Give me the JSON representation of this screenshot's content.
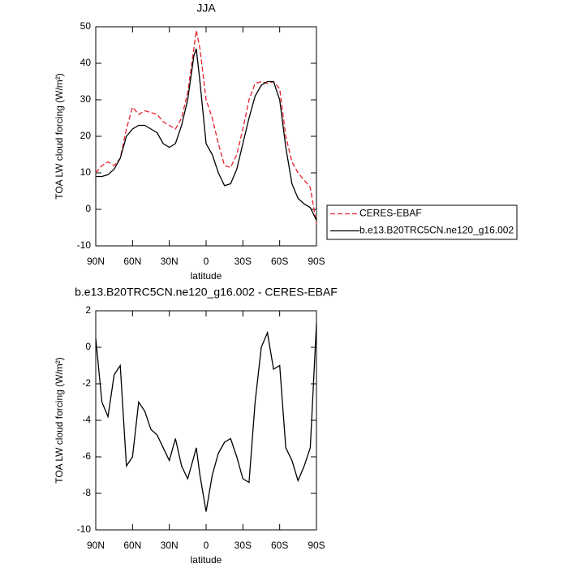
{
  "chart_data": [
    {
      "type": "line",
      "title": "JJA",
      "xlabel": "latitude",
      "ylabel": "TOA LW cloud forcing (W/m²)",
      "x": [
        90,
        85,
        80,
        75,
        70,
        65,
        60,
        55,
        50,
        45,
        40,
        35,
        30,
        25,
        20,
        15,
        10,
        8,
        5,
        0,
        -5,
        -10,
        -15,
        -20,
        -25,
        -30,
        -35,
        -40,
        -45,
        -50,
        -55,
        -60,
        -65,
        -70,
        -75,
        -80,
        -85,
        -90
      ],
      "series": [
        {
          "name": "CERES-EBAF",
          "color": "#e8202a",
          "dash": "dashed",
          "values": [
            10,
            12,
            13,
            12,
            14,
            22,
            28,
            26,
            27,
            26.5,
            26,
            24,
            23,
            22,
            25,
            32,
            44,
            49,
            44,
            30,
            25,
            18,
            12,
            11.5,
            15,
            22,
            30,
            34.5,
            35,
            34.5,
            35,
            33,
            20,
            13,
            10,
            8,
            6,
            -4
          ]
        },
        {
          "name": "b.e13.B20TRC5CN.ne120_g16.002",
          "color": "#000000",
          "dash": "solid",
          "values": [
            9,
            9,
            9.5,
            11,
            14,
            20,
            22,
            23,
            23,
            22,
            21,
            18,
            17,
            18,
            23,
            30,
            42,
            44,
            35,
            18,
            15,
            10,
            6.5,
            7,
            11,
            18,
            25,
            31,
            34,
            35,
            35,
            30,
            17,
            7,
            3,
            1.5,
            0.5,
            -3
          ]
        }
      ],
      "xlim": [
        90,
        -90
      ],
      "xticks": [
        {
          "value": 90,
          "label": "90N"
        },
        {
          "value": 60,
          "label": "60N"
        },
        {
          "value": 30,
          "label": "30N"
        },
        0,
        {
          "value": -30,
          "label": "30S"
        },
        {
          "value": -60,
          "label": "60S"
        },
        {
          "value": -90,
          "label": "90S"
        }
      ],
      "ylim": [
        -10,
        50
      ],
      "yticks": [
        -10,
        0,
        10,
        20,
        30,
        40,
        50
      ],
      "legend": "right"
    },
    {
      "type": "line",
      "title": "b.e13.B20TRC5CN.ne120_g16.002 - CERES-EBAF",
      "xlabel": "latitude",
      "ylabel": "TOA LW cloud forcing (W/m²)",
      "x": [
        90,
        85,
        80,
        75,
        70,
        65,
        60,
        55,
        50,
        45,
        40,
        35,
        30,
        25,
        20,
        15,
        10,
        8,
        5,
        0,
        -5,
        -10,
        -15,
        -20,
        -25,
        -30,
        -35,
        -40,
        -45,
        -50,
        -55,
        -60,
        -65,
        -70,
        -75,
        -80,
        -85,
        -90
      ],
      "color": "#000000",
      "values": [
        0.5,
        -3,
        -3.8,
        -1.5,
        -1,
        -6.5,
        -6,
        -3,
        -3.5,
        -4.5,
        -4.8,
        -5.5,
        -6.2,
        -5,
        -6.5,
        -7.2,
        -6,
        -5.5,
        -7,
        -9,
        -7,
        -5.8,
        -5.2,
        -5,
        -6,
        -7.2,
        -7.4,
        -3,
        0,
        0.8,
        -1.2,
        -1,
        -5.5,
        -6.2,
        -7.3,
        -6.5,
        -5.5,
        1.3
      ],
      "xlim": [
        90,
        -90
      ],
      "xticks": [
        {
          "value": 90,
          "label": "90N"
        },
        {
          "value": 60,
          "label": "60N"
        },
        {
          "value": 30,
          "label": "30N"
        },
        0,
        {
          "value": -30,
          "label": "30S"
        },
        {
          "value": -60,
          "label": "60S"
        },
        {
          "value": -90,
          "label": "90S"
        }
      ],
      "ylim": [
        -10,
        2
      ],
      "yticks": [
        -10,
        -8,
        -6,
        -4,
        -2,
        0,
        2
      ]
    }
  ]
}
